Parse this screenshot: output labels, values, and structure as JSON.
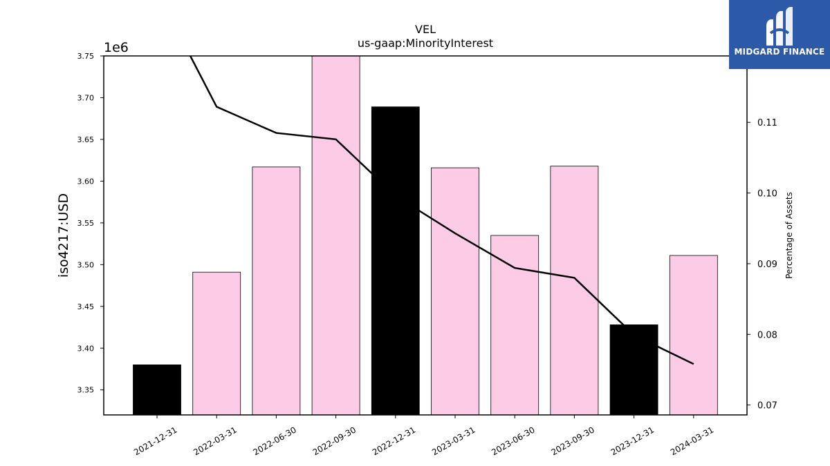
{
  "chart_data": {
    "type": "bar",
    "title": "VEL",
    "subtitle": "us-gaap:MinorityInterest",
    "ylabel": "iso4217:USD",
    "y_offset_label": "1e6",
    "y2label": "Percentage of Assets",
    "categories": [
      "2021-12-31",
      "2022-03-31",
      "2022-06-30",
      "2022-09-30",
      "2022-12-31",
      "2023-03-31",
      "2023-06-30",
      "2023-09-30",
      "2023-12-31",
      "2024-03-31"
    ],
    "bar_values": [
      3380000,
      3491000,
      3617000,
      3751000,
      3689000,
      3616000,
      3535000,
      3618000,
      3428000,
      3511000
    ],
    "bar_colors": [
      "#000000",
      "#fccbe6",
      "#fccbe6",
      "#fccbe6",
      "#000000",
      "#fccbe6",
      "#fccbe6",
      "#fccbe6",
      "#000000",
      "#fccbe6"
    ],
    "line_values": [
      0.1285,
      0.1122,
      0.1085,
      0.1076,
      0.0996,
      0.0943,
      0.0894,
      0.088,
      0.0799,
      0.0758
    ],
    "line_color": "#000000",
    "ylim": [
      3320000,
      3750000
    ],
    "y2lim": [
      0.0686,
      0.1194
    ],
    "yticks": [
      3.35,
      3.4,
      3.45,
      3.5,
      3.55,
      3.6,
      3.65,
      3.7,
      3.75
    ],
    "ytick_labels": [
      "3.35",
      "3.40",
      "3.45",
      "3.50",
      "3.55",
      "3.60",
      "3.65",
      "3.70",
      "3.75"
    ],
    "y2ticks": [
      0.07,
      0.08,
      0.09,
      0.1,
      0.11
    ],
    "y2tick_labels": [
      "0.07",
      "0.08",
      "0.09",
      "0.10",
      "0.11"
    ],
    "grid": false
  },
  "logo": {
    "name": "MIDGARD FINANCE",
    "background": "#2c5aa8",
    "icon": "midgard-logo-icon"
  }
}
